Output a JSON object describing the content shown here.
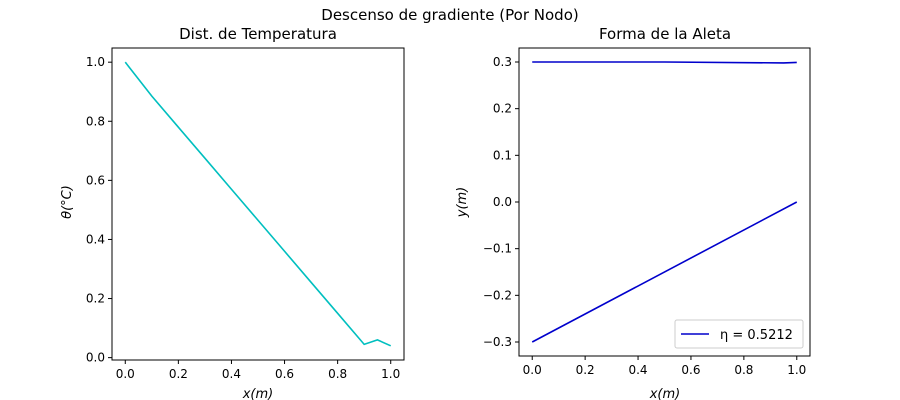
{
  "figure": {
    "suptitle": "Descenso de gradiente (Por Nodo)"
  },
  "chart_data": [
    {
      "type": "line",
      "title": "Dist. de Temperatura",
      "xlabel": "x(m)",
      "ylabel": "θ(°C)",
      "xlim": [
        -0.05,
        1.05
      ],
      "ylim": [
        -0.008,
        1.048
      ],
      "xticks": [
        0.0,
        0.2,
        0.4,
        0.6,
        0.8,
        1.0
      ],
      "xtick_labels": [
        "0.0",
        "0.2",
        "0.4",
        "0.6",
        "0.8",
        "1.0"
      ],
      "yticks": [
        0.0,
        0.2,
        0.4,
        0.6,
        0.8,
        1.0
      ],
      "ytick_labels": [
        "0.0",
        "0.2",
        "0.4",
        "0.6",
        "0.8",
        "1.0"
      ],
      "grid": false,
      "series": [
        {
          "color": "#00bfbf",
          "x": [
            0.0,
            0.1,
            0.2,
            0.3,
            0.4,
            0.5,
            0.6,
            0.7,
            0.8,
            0.9,
            0.95,
            1.0
          ],
          "y": [
            1.0,
            0.885,
            0.78,
            0.675,
            0.57,
            0.465,
            0.36,
            0.255,
            0.15,
            0.045,
            0.06,
            0.04
          ]
        }
      ]
    },
    {
      "type": "line",
      "title": "Forma de la Aleta",
      "xlabel": "x(m)",
      "ylabel": "y(m)",
      "xlim": [
        -0.05,
        1.05
      ],
      "ylim": [
        -0.33,
        0.33
      ],
      "xticks": [
        0.0,
        0.2,
        0.4,
        0.6,
        0.8,
        1.0
      ],
      "xtick_labels": [
        "0.0",
        "0.2",
        "0.4",
        "0.6",
        "0.8",
        "1.0"
      ],
      "yticks": [
        0.3,
        0.2,
        0.1,
        0.0,
        -0.1,
        -0.2,
        -0.3
      ],
      "ytick_labels": [
        "0.3",
        "0.2",
        "0.1",
        "0.0",
        "−0.1",
        "−0.2",
        "−0.3"
      ],
      "grid": false,
      "legend": {
        "placement": "lower-right",
        "entries": [
          {
            "label": "η = 0.5212",
            "color": "#0000cc"
          }
        ]
      },
      "series": [
        {
          "color": "#0000cc",
          "x": [
            0.0,
            0.5,
            0.95,
            1.0
          ],
          "y": [
            0.3,
            0.3,
            0.298,
            0.299
          ]
        },
        {
          "color": "#0000cc",
          "x": [
            0.0,
            1.0
          ],
          "y": [
            -0.3,
            0.0
          ]
        }
      ]
    }
  ]
}
